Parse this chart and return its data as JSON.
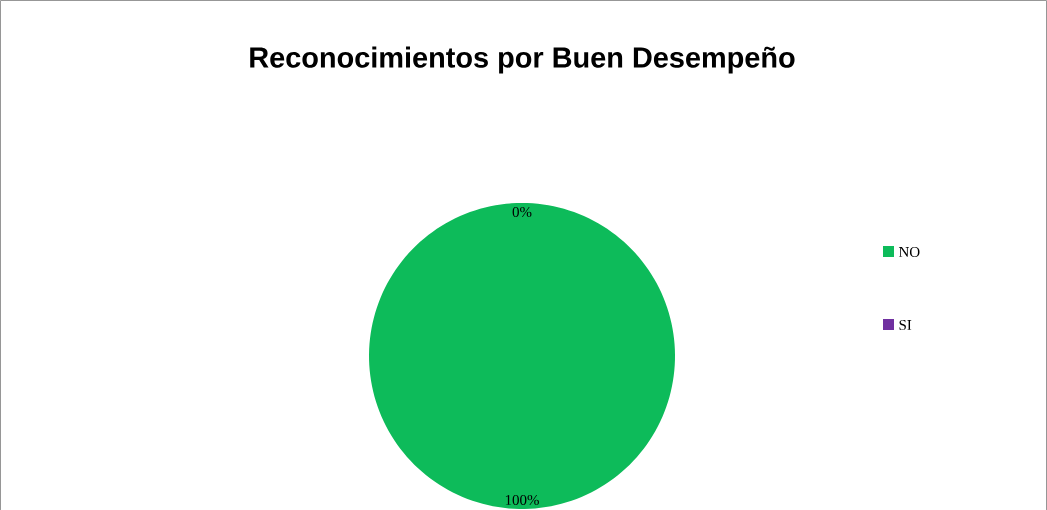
{
  "chart_data": {
    "type": "pie",
    "title": "Reconocimientos por Buen Desempeño",
    "categories": [
      "NO",
      "SI"
    ],
    "values": [
      100,
      0
    ],
    "colors": [
      "#0dbb5a",
      "#7030a0"
    ],
    "value_labels": [
      "100%",
      "0%"
    ],
    "legend": "right"
  }
}
